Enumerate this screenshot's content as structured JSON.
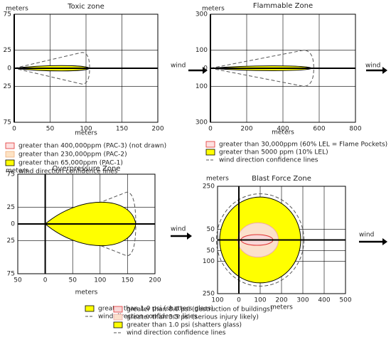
{
  "chart_data": [
    {
      "type": "zone",
      "title": "Toxic zone",
      "xlabel": "meters",
      "ylabel": "meters",
      "wind": "wind",
      "xlim": [
        0,
        200
      ],
      "ylim": [
        -75,
        75
      ],
      "xticks": [
        0,
        50,
        100,
        150,
        200
      ],
      "yticks": [
        75,
        25,
        0,
        {
          "value": -25,
          "label": "25"
        },
        {
          "value": -75,
          "label": "75"
        }
      ],
      "grid": true,
      "series": [
        {
          "name": "greater than 400,000ppm (PAC-3) (not drawn)",
          "color": "#fde0e0",
          "stroke": "#e03030"
        },
        {
          "name": "greater than 230,000ppm (PAC-2)",
          "color": "#fde3c4",
          "stroke": "#f0b080"
        },
        {
          "name": "greater than 65,000ppm (PAC-1)",
          "color": "#ffff00",
          "stroke": "#000000",
          "length": 105,
          "width": 4
        },
        {
          "name": "wind direction confidence lines",
          "color": "none",
          "stroke": "#555555",
          "dash": true,
          "length": 105,
          "width": 22
        }
      ]
    },
    {
      "type": "zone",
      "title": "Flammable Zone",
      "xlabel": "meters",
      "ylabel": "meters",
      "wind": "wind",
      "xlim": [
        0,
        800
      ],
      "ylim": [
        -300,
        300
      ],
      "xticks": [
        0,
        200,
        400,
        600,
        800
      ],
      "yticks": [
        300,
        100,
        0,
        {
          "value": -100,
          "label": "100"
        },
        {
          "value": -300,
          "label": "300"
        }
      ],
      "grid": true,
      "series": [
        {
          "name": "greater than 30,000ppm (60% LEL = Flame Pockets)",
          "color": "#fde0e0",
          "stroke": "#e03030"
        },
        {
          "name": "greater than 5000 ppm (10% LEL)",
          "color": "#ffff00",
          "stroke": "#000000",
          "length": 560,
          "width": 14
        },
        {
          "name": "wind direction confidence lines",
          "color": "none",
          "stroke": "#555555",
          "dash": true,
          "length": 570,
          "width": 100
        }
      ]
    },
    {
      "type": "zone",
      "title": "Overpressure Zone",
      "xlabel": "meters",
      "ylabel": "meters",
      "wind": "wind",
      "xlim": [
        -50,
        200
      ],
      "ylim": [
        -75,
        75
      ],
      "xticks": [
        {
          "value": -50,
          "label": "50"
        },
        0,
        50,
        100,
        150,
        200
      ],
      "yticks": [
        75,
        25,
        0,
        {
          "value": -25,
          "label": "25"
        },
        {
          "value": -75,
          "label": "75"
        }
      ],
      "grid": true,
      "series": [
        {
          "name": "greater than 1.0 psi (shatters glass)",
          "color": "#ffff00",
          "stroke": "#000000",
          "length": 165,
          "width": 35
        },
        {
          "name": "wind direction confidence lines",
          "color": "none",
          "stroke": "#555555",
          "dash": true,
          "length": 165,
          "width": 48
        }
      ]
    },
    {
      "type": "blast",
      "title": "Blast Force Zone",
      "xlabel": "meters",
      "ylabel": "meters",
      "wind": "wind",
      "xlim": [
        -100,
        500
      ],
      "ylim": [
        -250,
        250
      ],
      "xticks": [
        {
          "value": -100,
          "label": "100"
        },
        0,
        100,
        200,
        300,
        400,
        500
      ],
      "yticks": [
        250,
        50,
        0,
        {
          "value": -50,
          "label": "50"
        },
        {
          "value": -100,
          "label": "100"
        },
        {
          "value": -250,
          "label": "250"
        }
      ],
      "grid": true,
      "series": [
        {
          "name": "greater than 8.0 psi (destruction of buildings)",
          "color": "#f8d8d8",
          "stroke": "#e03030",
          "center": 85,
          "rx": 75,
          "ry": 25
        },
        {
          "name": "greater than 3.5 psi (serious injury likely)",
          "color": "#fbe0cc",
          "stroke": "#f0a8a8",
          "center": 90,
          "rx": 95,
          "ry": 80
        },
        {
          "name": "greater than 1.0 psi (shatters glass)",
          "color": "#ffff00",
          "stroke": "#000000",
          "center": 100,
          "rx": 190,
          "ry": 200
        },
        {
          "name": "wind direction confidence lines",
          "color": "none",
          "stroke": "#555555",
          "dash": true,
          "center": 100,
          "rx": 205,
          "ry": 215
        }
      ]
    }
  ]
}
